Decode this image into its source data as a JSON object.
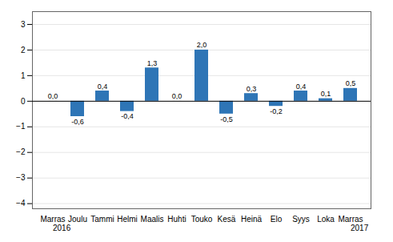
{
  "chart_data": {
    "type": "bar",
    "categories": [
      "Marras",
      "Joulu",
      "Tammi",
      "Helmi",
      "Maalis",
      "Huhti",
      "Touko",
      "Kesä",
      "Heinä",
      "Elo",
      "Syys",
      "Loka",
      "Marras"
    ],
    "values": [
      0.0,
      -0.6,
      0.4,
      -0.4,
      1.3,
      0.0,
      2.0,
      -0.5,
      0.3,
      -0.2,
      0.4,
      0.1,
      0.5
    ],
    "value_labels": [
      "0,0",
      "-0,6",
      "0,4",
      "-0,4",
      "1,3",
      "0,0",
      "2,0",
      "-0,5",
      "0,3",
      "-0,2",
      "0,4",
      "0,1",
      "0,5"
    ],
    "data_labels": true,
    "color": "#2e75b6",
    "ylim": [
      -4.2,
      3.5
    ],
    "yticks": [
      -4,
      -3,
      -2,
      -1,
      0,
      1,
      2,
      3
    ],
    "grid": true,
    "annotations": [
      {
        "text": "2016",
        "x": 0
      },
      {
        "text": "2017",
        "x": 12
      }
    ]
  }
}
